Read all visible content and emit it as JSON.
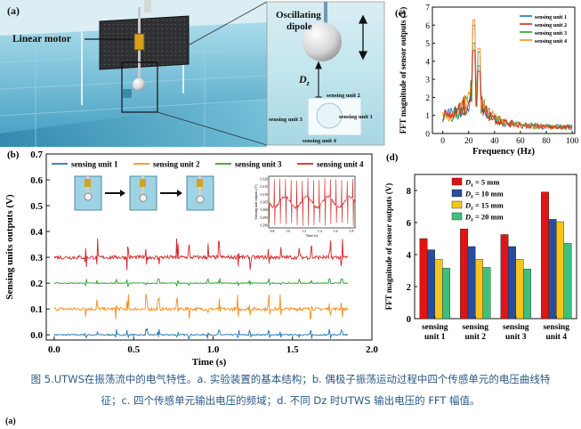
{
  "panel_a": {
    "label": "(a)",
    "linear_motor_label": "Linear motor",
    "dipole_label_line1": "Oscillating",
    "dipole_label_line2": "dipole",
    "dz_label": "D",
    "dz_sub": "z",
    "unit2_label": "sensing unit 2",
    "unit3_label": "sensing unit 3",
    "unit1_label": "sensing unit 1",
    "unit4_label": "sensing unit 4"
  },
  "panel_b": {
    "label": "(b)",
    "inset_yticks": [
      "0.320",
      "0.315",
      "0.310",
      "0.305",
      "0.300",
      "0.295",
      "0.290"
    ],
    "inset_xticks": [
      "0.8",
      "1.0",
      "1.2",
      "1.4",
      "1.6",
      "1.8"
    ],
    "inset_ylabel": "Sensing unit outputs (V)",
    "inset_xlabel": "Time (s)"
  },
  "panel_c": {
    "label": "(c)"
  },
  "panel_d": {
    "label": "(d)"
  },
  "chart_data": [
    {
      "id": "b",
      "type": "line",
      "title": "",
      "xlabel": "Time (s)",
      "ylabel": "Sensing units outputs (V)",
      "xlim": [
        -0.05,
        2.0
      ],
      "ylim": [
        -0.02,
        0.7
      ],
      "xticks": [
        "0.0",
        "0.5",
        "1.0",
        "1.5",
        "2.0"
      ],
      "yticks": [
        "0.0",
        "0.1",
        "0.2",
        "0.3",
        "0.4",
        "0.5",
        "0.6",
        "0.7"
      ],
      "legend": [
        "sensing unit 1",
        "sensing unit 2",
        "sensing unit 3",
        "sensing unit 4"
      ],
      "series": [
        {
          "name": "sensing unit 1",
          "color": "#1f77b4",
          "baseline": 0.0,
          "amplitude": 0.02
        },
        {
          "name": "sensing unit 2",
          "color": "#ff8c1a",
          "baseline": 0.1,
          "amplitude": 0.05
        },
        {
          "name": "sensing unit 3",
          "color": "#2ca02c",
          "baseline": 0.2,
          "amplitude": 0.015
        },
        {
          "name": "sensing unit 4",
          "color": "#d62728",
          "baseline": 0.3,
          "amplitude": 0.06
        }
      ],
      "x_end": 1.85
    },
    {
      "id": "c",
      "type": "line",
      "title": "",
      "xlabel": "Frequency (Hz)",
      "ylabel": "FFT magnitude of sensor outputs (V)",
      "xlim": [
        -8,
        102
      ],
      "ylim": [
        0,
        7
      ],
      "xticks": [
        "0",
        "20",
        "40",
        "60",
        "80",
        "100"
      ],
      "yticks": [
        "0",
        "1",
        "2",
        "3",
        "4",
        "5",
        "6",
        "7"
      ],
      "legend": [
        "sensing unit 1",
        "sensing unit 2",
        "sensing unit 3",
        "sensing unit 4"
      ],
      "colors": [
        "#1f77b4",
        "#d62728",
        "#2ca02c",
        "#ff8c1a"
      ],
      "peak_hz": 24,
      "peak_values": [
        6.0,
        4.6,
        5.0,
        6.3
      ]
    },
    {
      "id": "d",
      "type": "bar",
      "title": "",
      "xlabel": "",
      "ylabel": "FFT magnitude of sensor outputs (V)",
      "ylim": [
        0,
        9
      ],
      "yticks": [
        "0",
        "2",
        "4",
        "6",
        "8"
      ],
      "categories": [
        [
          "sensing",
          "unit 1"
        ],
        [
          "sensing",
          "unit 2"
        ],
        [
          "sensing",
          "unit 3"
        ],
        [
          "sensing",
          "unit 4"
        ]
      ],
      "series": [
        {
          "name": "D",
          "name_sub": "z",
          "name_rest": " = 5 mm",
          "color": "#e01414",
          "values": [
            5.0,
            5.6,
            5.25,
            7.9
          ]
        },
        {
          "name": "D",
          "name_sub": "z",
          "name_rest": " = 10 mm",
          "color": "#2a4d9b",
          "values": [
            4.3,
            4.5,
            4.5,
            6.2
          ]
        },
        {
          "name": "D",
          "name_sub": "z",
          "name_rest": " = 15 mm",
          "color": "#f5c51a",
          "values": [
            3.7,
            3.7,
            3.7,
            6.05
          ]
        },
        {
          "name": "D",
          "name_sub": "z",
          "name_rest": " = 20 mm",
          "color": "#3ec07a",
          "values": [
            3.15,
            3.2,
            3.1,
            4.7
          ]
        }
      ]
    }
  ],
  "caption": {
    "line1": "图 5.UTWS在振荡流中的电气特性。a. 实验装置的基本结构；b. 偶极子振荡运动过程中四个传感单元的电压曲线特",
    "line2": "征；c. 四个传感单元输出电压的频域；d. 不同 Dz 时UTWS 输出电压的 FFT 幅值。"
  },
  "next_figure_label": "(a)"
}
